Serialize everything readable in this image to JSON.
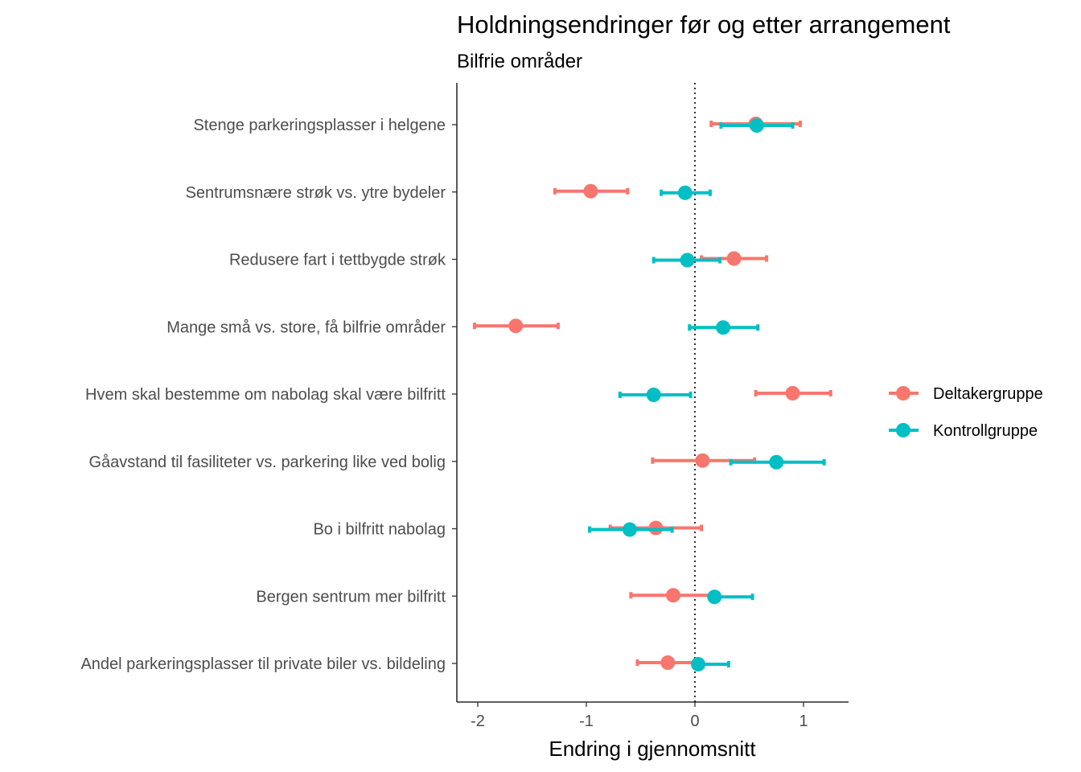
{
  "chart_data": {
    "type": "scatter",
    "title": "Holdningsendringer før og etter arrangement",
    "subtitle": "Bilfrie områder",
    "xlabel": "Endring i gjennomsnitt",
    "ylabel": "",
    "xlim": [
      -2.2,
      1.4
    ],
    "xticks": [
      -2,
      -1,
      0,
      1
    ],
    "xtick_labels": [
      "-2",
      "-1",
      "0",
      "1"
    ],
    "reference_line_x": 0,
    "grid": false,
    "legend_position": "right",
    "categories": [
      "Stenge parkeringsplasser i helgene",
      "Sentrumsnære strøk vs. ytre bydeler",
      "Redusere fart i tettbygde strøk",
      "Mange små vs. store, få bilfrie områder",
      "Hvem skal bestemme om nabolag skal være bilfritt",
      "Gåavstand til fasiliteter vs. parkering like ved bolig",
      "Bo i bilfritt nabolag",
      "Bergen sentrum mer bilfritt",
      "Andel parkeringsplasser til private biler vs. bildeling"
    ],
    "series": [
      {
        "name": "Deltakergruppe",
        "color": "#F8766D",
        "values": [
          0.56,
          -0.96,
          0.36,
          -1.65,
          0.9,
          0.07,
          -0.36,
          -0.2,
          -0.25
        ],
        "lower": [
          0.15,
          -1.29,
          0.06,
          -2.03,
          0.56,
          -0.39,
          -0.78,
          -0.59,
          -0.53
        ],
        "upper": [
          0.97,
          -0.62,
          0.66,
          -1.26,
          1.25,
          0.55,
          0.06,
          0.18,
          0.03
        ]
      },
      {
        "name": "Kontrollgruppe",
        "color": "#00BFC4",
        "values": [
          0.57,
          -0.09,
          -0.07,
          0.26,
          -0.38,
          0.75,
          -0.6,
          0.18,
          0.03
        ],
        "lower": [
          0.24,
          -0.31,
          -0.38,
          -0.05,
          -0.69,
          0.33,
          -0.97,
          0.18,
          0.03
        ],
        "upper": [
          0.9,
          0.14,
          0.23,
          0.58,
          -0.04,
          1.19,
          -0.21,
          0.53,
          0.31
        ]
      }
    ]
  }
}
